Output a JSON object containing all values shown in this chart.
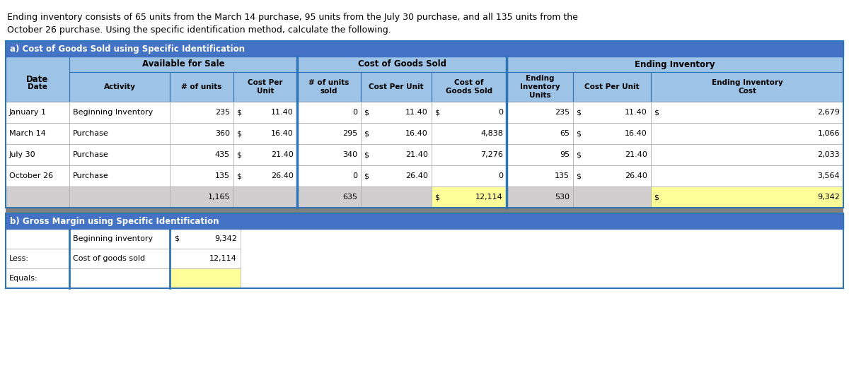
{
  "intro_text_line1": "Ending inventory consists of 65 units from the March 14 purchase, 95 units from the July 30 purchase, and all 135 units from the",
  "intro_text_line2": "October 26 purchase. Using the specific identification method, calculate the following.",
  "section_a_title": "a) Cost of Goods Sold using Specific Identification",
  "section_b_title": "b) Gross Margin using Specific Identification",
  "blue_dark": "#4472C4",
  "blue_mid": "#5B9BD5",
  "blue_light": "#9DC3E6",
  "blue_header": "#2F5597",
  "gray_total": "#D0CECE",
  "yellow_bg": "#FFFF99",
  "white": "#FFFFFF",
  "border_dark": "#2E75B6",
  "text_black": "#000000",
  "text_white": "#FFFFFF",
  "dates": [
    "January 1",
    "March 14",
    "July 30",
    "October 26",
    ""
  ],
  "activities": [
    "Beginning Inventory",
    "Purchase",
    "Purchase",
    "Purchase",
    ""
  ],
  "afs_units": [
    "235",
    "360",
    "435",
    "135",
    "1,165"
  ],
  "afs_cpu": [
    "11.40",
    "16.40",
    "21.40",
    "26.40",
    ""
  ],
  "cogs_sold": [
    "0",
    "295",
    "340",
    "0",
    "635"
  ],
  "cogs_cpu": [
    "11.40",
    "16.40",
    "21.40",
    "26.40",
    ""
  ],
  "cogs_cost": [
    "0",
    "4,838",
    "7,276",
    "0",
    "12,114"
  ],
  "ei_units": [
    "235",
    "65",
    "95",
    "135",
    "530"
  ],
  "ei_cpu": [
    "11.40",
    "16.40",
    "21.40",
    "26.40",
    ""
  ],
  "ei_cost": [
    "2,679",
    "1,066",
    "2,033",
    "3,564",
    "9,342"
  ],
  "show_dollar_cogs_r0": true,
  "show_dollar_ei_r0": true,
  "show_dollar_cogs_total": true,
  "show_dollar_ei_total": true
}
